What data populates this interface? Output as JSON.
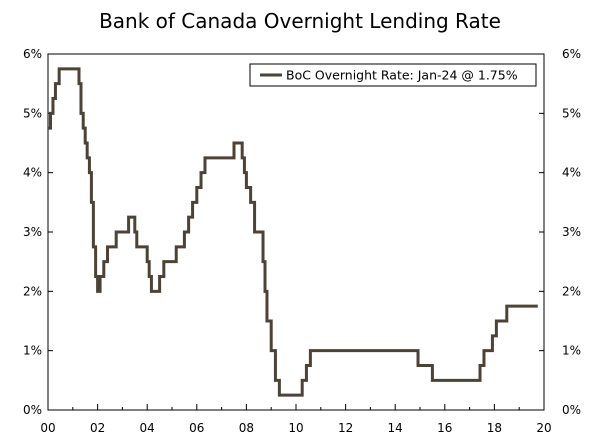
{
  "chart_data": {
    "type": "line",
    "title": "Bank of Canada Overnight Lending Rate",
    "xlabel": "",
    "ylabel": "",
    "xlim": [
      0,
      20
    ],
    "ylim": [
      0,
      6
    ],
    "grid": false,
    "legend_position": "top-right",
    "x_ticks": [
      0,
      2,
      4,
      6,
      8,
      10,
      12,
      14,
      16,
      18,
      20
    ],
    "x_tick_labels": [
      "00",
      "02",
      "04",
      "06",
      "08",
      "10",
      "12",
      "14",
      "16",
      "18",
      "20"
    ],
    "y_ticks": [
      0,
      1,
      2,
      3,
      4,
      5,
      6
    ],
    "y_tick_labels": [
      "0%",
      "1%",
      "2%",
      "3%",
      "4%",
      "5%",
      "6%"
    ],
    "series": [
      {
        "name": "BoC Overnight Rate: Jan-24 @ 1.75%",
        "color": "#4d4235",
        "step": true,
        "x": [
          0.0,
          0.1,
          0.2,
          0.3,
          0.45,
          1.0,
          1.25,
          1.33,
          1.42,
          1.5,
          1.58,
          1.67,
          1.75,
          1.83,
          1.92,
          2.0,
          2.1,
          2.25,
          2.4,
          2.5,
          2.65,
          2.75,
          3.25,
          3.5,
          3.58,
          3.67,
          4.0,
          4.08,
          4.17,
          4.25,
          4.5,
          4.67,
          4.75,
          4.83,
          5.0,
          5.17,
          5.5,
          5.67,
          5.83,
          6.0,
          6.17,
          6.33,
          6.42,
          6.5,
          7.5,
          7.58,
          7.83,
          7.92,
          8.0,
          8.17,
          8.33,
          8.67,
          8.75,
          8.83,
          9.0,
          9.17,
          9.33,
          10.25,
          10.42,
          10.58,
          10.67,
          14.92,
          15.5,
          16.0,
          17.42,
          17.58,
          17.75,
          17.92,
          18.08,
          18.5,
          18.75,
          19.75
        ],
        "y": [
          4.75,
          5.0,
          5.25,
          5.5,
          5.75,
          5.75,
          5.5,
          5.0,
          4.75,
          4.5,
          4.25,
          4.0,
          3.5,
          2.75,
          2.25,
          2.0,
          2.25,
          2.5,
          2.75,
          2.75,
          2.75,
          3.0,
          3.25,
          3.0,
          2.75,
          2.75,
          2.5,
          2.25,
          2.0,
          2.0,
          2.25,
          2.5,
          2.5,
          2.5,
          2.5,
          2.75,
          3.0,
          3.25,
          3.5,
          3.75,
          4.0,
          4.25,
          4.25,
          4.25,
          4.5,
          4.5,
          4.25,
          4.0,
          3.75,
          3.5,
          3.0,
          2.5,
          2.0,
          1.5,
          1.0,
          0.5,
          0.25,
          0.5,
          0.75,
          1.0,
          1.0,
          0.75,
          0.5,
          0.5,
          0.75,
          1.0,
          1.0,
          1.25,
          1.5,
          1.75,
          1.75,
          1.75
        ]
      }
    ]
  }
}
